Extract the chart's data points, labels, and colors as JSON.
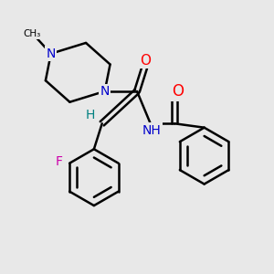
{
  "bg_color": "#e8e8e8",
  "bond_color": "#000000",
  "N_color": "#0000cc",
  "O_color": "#ff0000",
  "F_color": "#cc00aa",
  "H_color": "#008080",
  "line_width": 1.8,
  "figsize": [
    3.0,
    3.0
  ],
  "dpi": 100,
  "xlim": [
    0,
    10
  ],
  "ylim": [
    0,
    10
  ]
}
